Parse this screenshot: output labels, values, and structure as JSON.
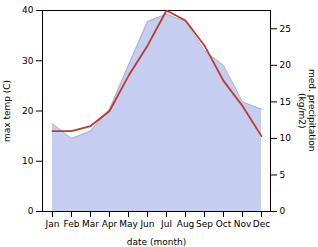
{
  "chart_data": {
    "type": "line",
    "xlabel": "date (month)",
    "ylabel": "max temp (C)",
    "y2label": "med. precipitation\n(kg/m2)",
    "categories": [
      "Jan",
      "Feb",
      "Mar",
      "Apr",
      "May",
      "Jun",
      "Jul",
      "Aug",
      "Sep",
      "Oct",
      "Nov",
      "Dec"
    ],
    "series": [
      {
        "type": "area",
        "axis": "y2",
        "color": "#c5cdf0",
        "values": [
          12,
          10,
          11,
          14,
          20,
          26,
          27,
          26,
          22,
          20,
          15,
          14
        ]
      },
      {
        "type": "line",
        "axis": "y",
        "color": "#c0392b",
        "values": [
          16,
          16,
          17,
          20,
          27,
          33,
          40,
          38,
          33,
          26,
          21,
          15
        ]
      }
    ],
    "ylim": [
      0,
      40
    ],
    "yticks": [
      0,
      10,
      20,
      30,
      40
    ],
    "y2lim": [
      0,
      27.5
    ],
    "y2ticks": [
      0,
      5,
      10,
      15,
      20,
      25
    ],
    "grid": false
  }
}
